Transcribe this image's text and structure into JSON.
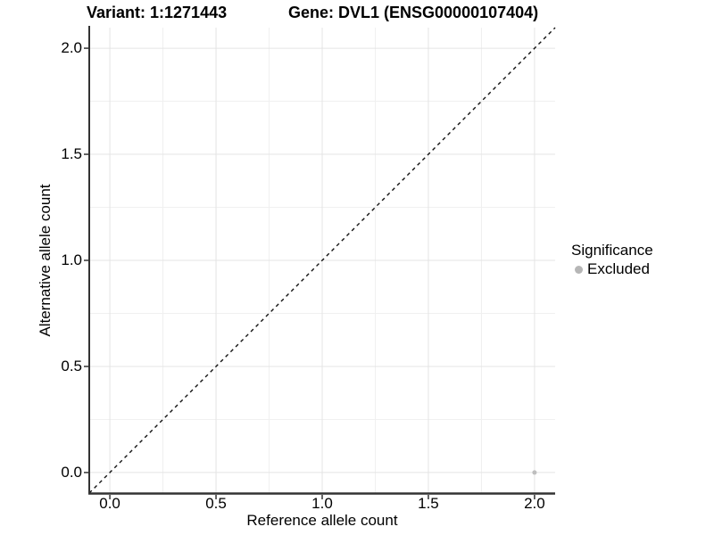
{
  "figure": {
    "background": "#ffffff",
    "text_color": "#000000"
  },
  "chart_data": {
    "type": "scatter",
    "title_variant": "Variant: 1:1271443",
    "title_gene": "Gene: DVL1 (ENSG00000107404)",
    "xlabel": "Reference allele count",
    "ylabel": "Alternative allele count",
    "x_ticks": [
      0.0,
      0.5,
      1.0,
      1.5,
      2.0
    ],
    "y_ticks": [
      0.0,
      0.5,
      1.0,
      1.5,
      2.0
    ],
    "x_tick_labels": [
      "0.0",
      "0.5",
      "1.0",
      "1.5",
      "2.0"
    ],
    "y_tick_labels": [
      "0.0",
      "0.5",
      "1.0",
      "1.5",
      "2.0"
    ],
    "xlim": [
      -0.097,
      2.097
    ],
    "ylim": [
      -0.097,
      2.097
    ],
    "grid": "major-and-minor",
    "grid_color_major": "#e4e4e4",
    "grid_color_minor": "#f0f0f0",
    "axis_line_color": "#333333",
    "tick_color": "#333333",
    "identity_line": {
      "style": "dashed",
      "slope": 1,
      "intercept": 0,
      "color": "#111111"
    },
    "series": [
      {
        "name": "Excluded",
        "color": "#bebebe",
        "point_radius": 2.5,
        "points": [
          {
            "x": 2.0,
            "y": 0.0
          }
        ]
      }
    ],
    "legend": {
      "title": "Significance",
      "position": "right",
      "entries": [
        {
          "label": "Excluded",
          "color": "#b6b6b6"
        }
      ]
    }
  }
}
